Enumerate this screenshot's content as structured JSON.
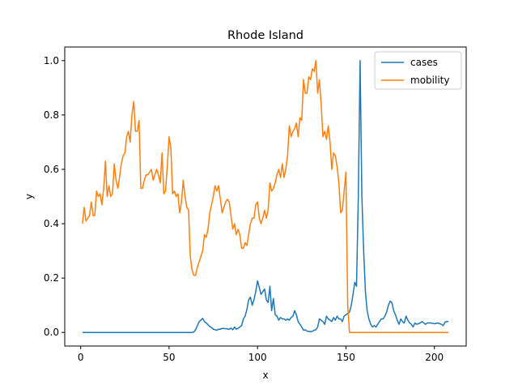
{
  "chart_data": {
    "type": "line",
    "title": "Rhode Island",
    "xlabel": "x",
    "ylabel": "y",
    "xlim": [
      -9,
      218
    ],
    "ylim": [
      -0.05,
      1.05
    ],
    "xticks": [
      0,
      50,
      100,
      150,
      200
    ],
    "yticks": [
      0.0,
      0.2,
      0.4,
      0.6,
      0.8,
      1.0
    ],
    "xtick_labels": [
      "0",
      "50",
      "100",
      "150",
      "200"
    ],
    "ytick_labels": [
      "0.0",
      "0.2",
      "0.4",
      "0.6",
      "0.8",
      "1.0"
    ],
    "legend": {
      "placement": "upper-right"
    },
    "series": [
      {
        "name": "cases",
        "color": "#1f77b4",
        "points": [
          [
            1,
            0
          ],
          [
            10,
            0
          ],
          [
            20,
            0
          ],
          [
            30,
            0
          ],
          [
            40,
            0
          ],
          [
            50,
            0
          ],
          [
            60,
            0
          ],
          [
            63,
            0
          ],
          [
            64,
            0.002
          ],
          [
            65,
            0.01
          ],
          [
            66,
            0.025
          ],
          [
            67,
            0.04
          ],
          [
            68,
            0.045
          ],
          [
            69,
            0.052
          ],
          [
            70,
            0.04
          ],
          [
            71,
            0.035
          ],
          [
            72,
            0.028
          ],
          [
            73,
            0.022
          ],
          [
            74,
            0.018
          ],
          [
            75,
            0.012
          ],
          [
            76,
            0.01
          ],
          [
            77,
            0.008
          ],
          [
            78,
            0.012
          ],
          [
            79,
            0.012
          ],
          [
            80,
            0.015
          ],
          [
            82,
            0.014
          ],
          [
            84,
            0.012
          ],
          [
            85,
            0.016
          ],
          [
            86,
            0.01
          ],
          [
            87,
            0.02
          ],
          [
            88,
            0.012
          ],
          [
            89,
            0.015
          ],
          [
            90,
            0.02
          ],
          [
            91,
            0.025
          ],
          [
            92,
            0.05
          ],
          [
            93,
            0.06
          ],
          [
            94,
            0.085
          ],
          [
            95,
            0.12
          ],
          [
            96,
            0.13
          ],
          [
            97,
            0.1
          ],
          [
            98,
            0.12
          ],
          [
            99,
            0.15
          ],
          [
            100,
            0.19
          ],
          [
            101,
            0.165
          ],
          [
            102,
            0.14
          ],
          [
            103,
            0.15
          ],
          [
            104,
            0.16
          ],
          [
            105,
            0.12
          ],
          [
            106,
            0.11
          ],
          [
            107,
            0.17
          ],
          [
            108,
            0.08
          ],
          [
            109,
            0.125
          ],
          [
            110,
            0.065
          ],
          [
            111,
            0.06
          ],
          [
            112,
            0.045
          ],
          [
            113,
            0.055
          ],
          [
            114,
            0.05
          ],
          [
            115,
            0.05
          ],
          [
            116,
            0.045
          ],
          [
            117,
            0.05
          ],
          [
            118,
            0.045
          ],
          [
            119,
            0.055
          ],
          [
            120,
            0.06
          ],
          [
            121,
            0.08
          ],
          [
            122,
            0.065
          ],
          [
            123,
            0.04
          ],
          [
            124,
            0.03
          ],
          [
            125,
            0.02
          ],
          [
            126,
            0.008
          ],
          [
            127,
            0.01
          ],
          [
            128,
            0.005
          ],
          [
            129,
            0.004
          ],
          [
            130,
            0.003
          ],
          [
            131,
            0.004
          ],
          [
            132,
            0.008
          ],
          [
            133,
            0.01
          ],
          [
            134,
            0.02
          ],
          [
            135,
            0.05
          ],
          [
            136,
            0.045
          ],
          [
            137,
            0.04
          ],
          [
            138,
            0.03
          ],
          [
            139,
            0.06
          ],
          [
            140,
            0.05
          ],
          [
            141,
            0.045
          ],
          [
            142,
            0.04
          ],
          [
            143,
            0.055
          ],
          [
            144,
            0.045
          ],
          [
            145,
            0.06
          ],
          [
            146,
            0.05
          ],
          [
            147,
            0.05
          ],
          [
            148,
            0.04
          ],
          [
            149,
            0.06
          ],
          [
            150,
            0.065
          ],
          [
            151,
            0.07
          ],
          [
            152,
            0.075
          ],
          [
            153,
            0.1
          ],
          [
            154,
            0.14
          ],
          [
            155,
            0.185
          ],
          [
            156,
            0.17
          ],
          [
            157,
            0.5
          ],
          [
            158,
            1.0
          ],
          [
            159,
            0.5
          ],
          [
            160,
            0.3
          ],
          [
            161,
            0.15
          ],
          [
            162,
            0.08
          ],
          [
            163,
            0.05
          ],
          [
            164,
            0.03
          ],
          [
            165,
            0.02
          ],
          [
            166,
            0.025
          ],
          [
            167,
            0.02
          ],
          [
            168,
            0.03
          ],
          [
            169,
            0.04
          ],
          [
            170,
            0.05
          ],
          [
            171,
            0.05
          ],
          [
            172,
            0.06
          ],
          [
            173,
            0.075
          ],
          [
            174,
            0.1
          ],
          [
            175,
            0.115
          ],
          [
            176,
            0.11
          ],
          [
            177,
            0.08
          ],
          [
            178,
            0.065
          ],
          [
            179,
            0.045
          ],
          [
            180,
            0.03
          ],
          [
            181,
            0.05
          ],
          [
            182,
            0.04
          ],
          [
            183,
            0.035
          ],
          [
            184,
            0.06
          ],
          [
            185,
            0.045
          ],
          [
            186,
            0.035
          ],
          [
            187,
            0.03
          ],
          [
            188,
            0.02
          ],
          [
            189,
            0.035
          ],
          [
            190,
            0.03
          ],
          [
            192,
            0.035
          ],
          [
            193,
            0.04
          ],
          [
            195,
            0.03
          ],
          [
            196,
            0.035
          ],
          [
            198,
            0.035
          ],
          [
            200,
            0.032
          ],
          [
            202,
            0.035
          ],
          [
            204,
            0.03
          ],
          [
            205,
            0.025
          ],
          [
            206,
            0.038
          ],
          [
            207,
            0.04
          ],
          [
            208,
            0.04
          ]
        ]
      },
      {
        "name": "mobility",
        "color": "#ff7f0e",
        "points": [
          [
            1,
            0.4
          ],
          [
            2,
            0.46
          ],
          [
            3,
            0.41
          ],
          [
            4,
            0.42
          ],
          [
            5,
            0.43
          ],
          [
            6,
            0.48
          ],
          [
            7,
            0.43
          ],
          [
            8,
            0.43
          ],
          [
            9,
            0.52
          ],
          [
            10,
            0.5
          ],
          [
            11,
            0.51
          ],
          [
            12,
            0.47
          ],
          [
            13,
            0.53
          ],
          [
            14,
            0.63
          ],
          [
            15,
            0.5
          ],
          [
            16,
            0.54
          ],
          [
            17,
            0.5
          ],
          [
            18,
            0.51
          ],
          [
            19,
            0.62
          ],
          [
            20,
            0.56
          ],
          [
            21,
            0.53
          ],
          [
            22,
            0.57
          ],
          [
            23,
            0.62
          ],
          [
            24,
            0.65
          ],
          [
            25,
            0.66
          ],
          [
            26,
            0.72
          ],
          [
            27,
            0.74
          ],
          [
            28,
            0.7
          ],
          [
            29,
            0.8
          ],
          [
            30,
            0.85
          ],
          [
            31,
            0.74
          ],
          [
            32,
            0.74
          ],
          [
            33,
            0.78
          ],
          [
            34,
            0.53
          ],
          [
            35,
            0.53
          ],
          [
            36,
            0.56
          ],
          [
            37,
            0.58
          ],
          [
            38,
            0.58
          ],
          [
            39,
            0.59
          ],
          [
            40,
            0.6
          ],
          [
            41,
            0.56
          ],
          [
            42,
            0.58
          ],
          [
            43,
            0.6
          ],
          [
            44,
            0.58
          ],
          [
            45,
            0.55
          ],
          [
            46,
            0.66
          ],
          [
            47,
            0.51
          ],
          [
            48,
            0.52
          ],
          [
            49,
            0.61
          ],
          [
            50,
            0.72
          ],
          [
            51,
            0.68
          ],
          [
            52,
            0.51
          ],
          [
            53,
            0.52
          ],
          [
            54,
            0.5
          ],
          [
            55,
            0.51
          ],
          [
            56,
            0.44
          ],
          [
            57,
            0.48
          ],
          [
            58,
            0.56
          ],
          [
            59,
            0.5
          ],
          [
            60,
            0.46
          ],
          [
            61,
            0.45
          ],
          [
            62,
            0.28
          ],
          [
            63,
            0.23
          ],
          [
            64,
            0.21
          ],
          [
            65,
            0.21
          ],
          [
            66,
            0.24
          ],
          [
            67,
            0.26
          ],
          [
            68,
            0.28
          ],
          [
            69,
            0.3
          ],
          [
            70,
            0.36
          ],
          [
            71,
            0.35
          ],
          [
            72,
            0.38
          ],
          [
            73,
            0.44
          ],
          [
            74,
            0.47
          ],
          [
            75,
            0.5
          ],
          [
            76,
            0.54
          ],
          [
            77,
            0.52
          ],
          [
            78,
            0.54
          ],
          [
            79,
            0.49
          ],
          [
            80,
            0.44
          ],
          [
            81,
            0.46
          ],
          [
            82,
            0.48
          ],
          [
            83,
            0.49
          ],
          [
            84,
            0.48
          ],
          [
            85,
            0.43
          ],
          [
            86,
            0.38
          ],
          [
            87,
            0.4
          ],
          [
            88,
            0.36
          ],
          [
            89,
            0.38
          ],
          [
            90,
            0.36
          ],
          [
            91,
            0.31
          ],
          [
            92,
            0.31
          ],
          [
            93,
            0.33
          ],
          [
            94,
            0.32
          ],
          [
            95,
            0.36
          ],
          [
            96,
            0.4
          ],
          [
            97,
            0.42
          ],
          [
            98,
            0.42
          ],
          [
            99,
            0.47
          ],
          [
            100,
            0.48
          ],
          [
            101,
            0.42
          ],
          [
            102,
            0.4
          ],
          [
            103,
            0.42
          ],
          [
            104,
            0.45
          ],
          [
            105,
            0.42
          ],
          [
            106,
            0.45
          ],
          [
            107,
            0.55
          ],
          [
            108,
            0.52
          ],
          [
            109,
            0.53
          ],
          [
            110,
            0.55
          ],
          [
            111,
            0.58
          ],
          [
            112,
            0.6
          ],
          [
            113,
            0.57
          ],
          [
            114,
            0.62
          ],
          [
            115,
            0.57
          ],
          [
            116,
            0.6
          ],
          [
            117,
            0.65
          ],
          [
            118,
            0.76
          ],
          [
            119,
            0.72
          ],
          [
            120,
            0.74
          ],
          [
            121,
            0.75
          ],
          [
            122,
            0.77
          ],
          [
            123,
            0.72
          ],
          [
            124,
            0.79
          ],
          [
            125,
            0.78
          ],
          [
            126,
            0.93
          ],
          [
            127,
            0.88
          ],
          [
            128,
            0.88
          ],
          [
            129,
            0.94
          ],
          [
            130,
            0.93
          ],
          [
            131,
            0.97
          ],
          [
            132,
            0.96
          ],
          [
            133,
            1.0
          ],
          [
            134,
            0.88
          ],
          [
            135,
            0.93
          ],
          [
            136,
            0.84
          ],
          [
            137,
            0.72
          ],
          [
            138,
            0.74
          ],
          [
            139,
            0.71
          ],
          [
            140,
            0.76
          ],
          [
            141,
            0.7
          ],
          [
            142,
            0.6
          ],
          [
            143,
            0.66
          ],
          [
            144,
            0.65
          ],
          [
            145,
            0.61
          ],
          [
            146,
            0.55
          ],
          [
            147,
            0.44
          ],
          [
            148,
            0.45
          ],
          [
            149,
            0.52
          ],
          [
            150,
            0.59
          ],
          [
            151,
            0.1
          ],
          [
            152,
            0
          ],
          [
            160,
            0
          ],
          [
            170,
            0
          ],
          [
            180,
            0
          ],
          [
            190,
            0
          ],
          [
            200,
            0
          ],
          [
            208,
            0
          ]
        ]
      }
    ]
  }
}
